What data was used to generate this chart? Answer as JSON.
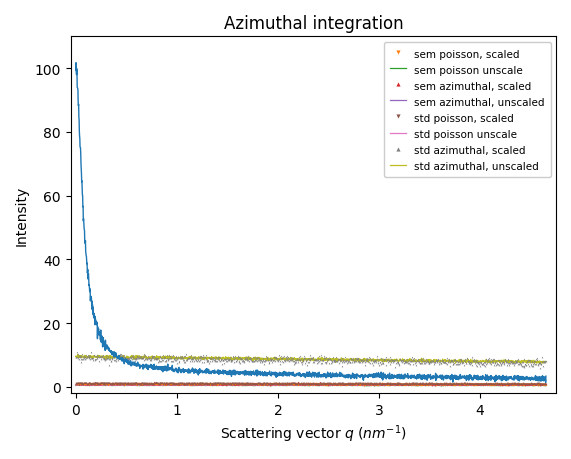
{
  "title": "Azimuthal integration",
  "xlabel": "Scattering vector $q$ $(nm^{-1})$",
  "ylabel": "Intensity",
  "xlim": [
    -0.05,
    4.75
  ],
  "ylim": [
    -2,
    110
  ],
  "q_max": 4.65,
  "main_color": "#1f77b4",
  "background_color": "#ffffff",
  "legend_entries": [
    {
      "label": "sem poisson, scaled",
      "color": "#ff7f0e",
      "marker": "v",
      "linestyle": "none",
      "lw": 0
    },
    {
      "label": "sem poisson unscale",
      "color": "#2ca02c",
      "marker": "none",
      "linestyle": "-",
      "lw": 1.0
    },
    {
      "label": "sem azimuthal, scaled",
      "color": "#d62728",
      "marker": "^",
      "linestyle": "none",
      "lw": 0
    },
    {
      "label": "sem azimuthal, unscaled",
      "color": "#9467bd",
      "marker": "none",
      "linestyle": "-",
      "lw": 1.0
    },
    {
      "label": "std poisson, scaled",
      "color": "#8c564b",
      "marker": "v",
      "linestyle": "none",
      "lw": 0
    },
    {
      "label": "std poisson unscale",
      "color": "#e377c2",
      "marker": "none",
      "linestyle": "-",
      "lw": 1.0
    },
    {
      "label": "std azimuthal, scaled",
      "color": "#7f7f7f",
      "marker": "^",
      "linestyle": "none",
      "lw": 0
    },
    {
      "label": "std azimuthal, unscaled",
      "color": "#bcbd22",
      "marker": "none",
      "linestyle": "-",
      "lw": 1.0
    }
  ]
}
